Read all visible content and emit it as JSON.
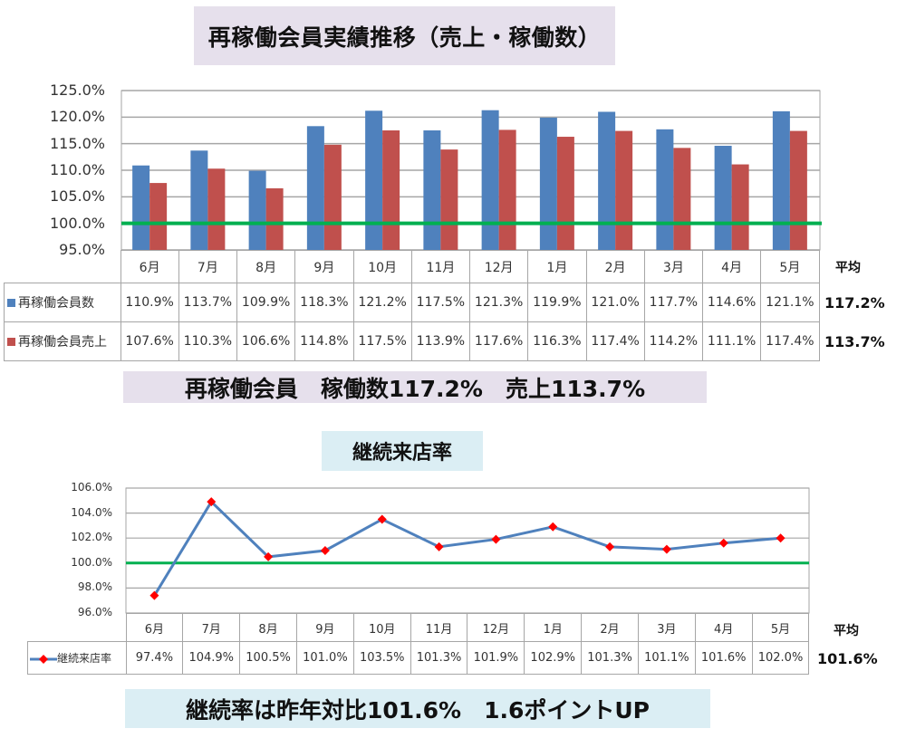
{
  "titles": {
    "chart1": "再稼働会員実績推移（売上・稼働数）",
    "summary1": "再稼働会員　稼働数117.2%　売上113.7%",
    "chart2": "継続来店率",
    "summary2": "継続率は昨年対比101.6%　1.6ポイントUP"
  },
  "colors": {
    "blue": "#4f81bd",
    "red": "#c0504d",
    "green": "#00b050",
    "marker": "#ff0000",
    "grid": "#a6a6a6"
  },
  "chart1": {
    "y_ticks": [
      "125.0%",
      "120.0%",
      "115.0%",
      "110.0%",
      "105.0%",
      "100.0%",
      "95.0%"
    ],
    "months": [
      "6月",
      "7月",
      "8月",
      "9月",
      "10月",
      "11月",
      "12月",
      "1月",
      "2月",
      "3月",
      "4月",
      "5月"
    ],
    "avg_label": "平均",
    "series": [
      {
        "name": "再稼働会員数",
        "values_text": [
          "110.9%",
          "113.7%",
          "109.9%",
          "118.3%",
          "121.2%",
          "117.5%",
          "121.3%",
          "119.9%",
          "121.0%",
          "117.7%",
          "114.6%",
          "121.1%"
        ],
        "avg": "117.2%"
      },
      {
        "name": "再稼働会員売上",
        "values_text": [
          "107.6%",
          "110.3%",
          "106.6%",
          "114.8%",
          "117.5%",
          "113.9%",
          "117.6%",
          "116.3%",
          "117.4%",
          "114.2%",
          "111.1%",
          "117.4%"
        ],
        "avg": "113.7%"
      }
    ]
  },
  "chart2": {
    "y_ticks": [
      "106.0%",
      "104.0%",
      "102.0%",
      "100.0%",
      "98.0%",
      "96.0%"
    ],
    "months": [
      "6月",
      "7月",
      "8月",
      "9月",
      "10月",
      "11月",
      "12月",
      "1月",
      "2月",
      "3月",
      "4月",
      "5月"
    ],
    "avg_label": "平均",
    "series": [
      {
        "name": "継続来店率",
        "values_text": [
          "97.4%",
          "104.9%",
          "100.5%",
          "101.0%",
          "103.5%",
          "101.3%",
          "101.9%",
          "102.9%",
          "101.3%",
          "101.1%",
          "101.6%",
          "102.0%"
        ],
        "avg": "101.6%"
      }
    ]
  },
  "chart_data": [
    {
      "type": "bar",
      "title": "再稼働会員実績推移（売上・稼働数）",
      "categories": [
        "6月",
        "7月",
        "8月",
        "9月",
        "10月",
        "11月",
        "12月",
        "1月",
        "2月",
        "3月",
        "4月",
        "5月"
      ],
      "series": [
        {
          "name": "再稼働会員数",
          "color": "#4f81bd",
          "values": [
            110.9,
            113.7,
            109.9,
            118.3,
            121.2,
            117.5,
            121.3,
            119.9,
            121.0,
            117.7,
            114.6,
            121.1
          ],
          "average": 117.2
        },
        {
          "name": "再稼働会員売上",
          "color": "#c0504d",
          "values": [
            107.6,
            110.3,
            106.6,
            114.8,
            117.5,
            113.9,
            117.6,
            116.3,
            117.4,
            114.2,
            111.1,
            117.4
          ],
          "average": 113.7
        }
      ],
      "reference_line": {
        "value": 100.0,
        "color": "#00b050"
      },
      "xlabel": "",
      "ylabel": "",
      "ylim": [
        95,
        125
      ],
      "y_tick_step": 5,
      "unit": "%",
      "grid": true,
      "legend_position": "data-table",
      "data_table": true
    },
    {
      "type": "line",
      "title": "継続来店率",
      "categories": [
        "6月",
        "7月",
        "8月",
        "9月",
        "10月",
        "11月",
        "12月",
        "1月",
        "2月",
        "3月",
        "4月",
        "5月"
      ],
      "series": [
        {
          "name": "継続来店率",
          "color": "#4f81bd",
          "marker": "diamond",
          "marker_color": "#ff0000",
          "values": [
            97.4,
            104.9,
            100.5,
            101.0,
            103.5,
            101.3,
            101.9,
            102.9,
            101.3,
            101.1,
            101.6,
            102.0
          ],
          "average": 101.6
        }
      ],
      "reference_line": {
        "value": 100.0,
        "color": "#00b050"
      },
      "xlabel": "",
      "ylabel": "",
      "ylim": [
        96,
        106
      ],
      "y_tick_step": 2,
      "unit": "%",
      "grid": true,
      "legend_position": "data-table",
      "data_table": true
    }
  ]
}
